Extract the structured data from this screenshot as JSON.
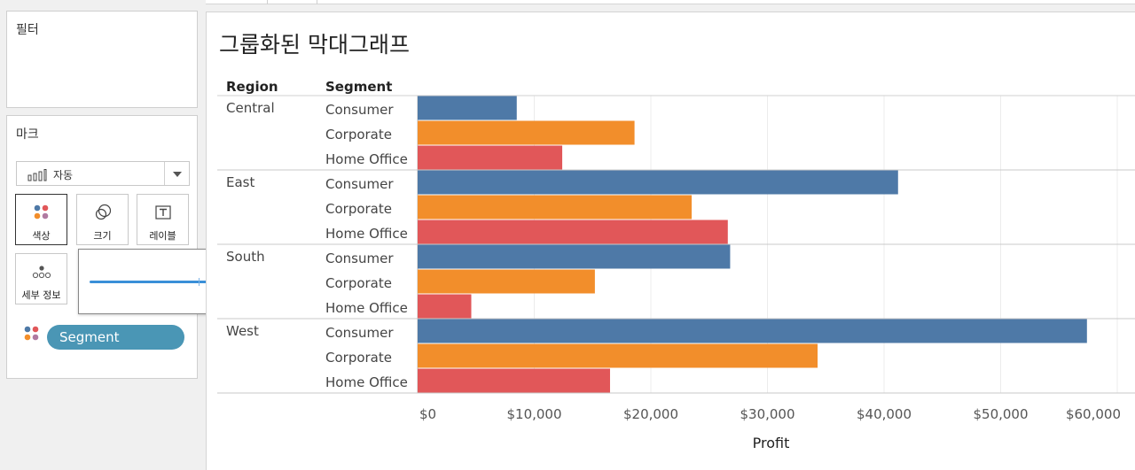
{
  "panels": {
    "filters_title": "필터",
    "marks_title": "마크",
    "mark_type": "자동",
    "buttons": [
      {
        "label": "색상",
        "icon": "color-icon",
        "active": true
      },
      {
        "label": "크기",
        "icon": "size-icon",
        "active": false
      },
      {
        "label": "레이블",
        "icon": "label-icon",
        "active": false
      },
      {
        "label": "세부 정보",
        "icon": "detail-icon",
        "active": false
      }
    ],
    "color_pill": "Segment",
    "size_slider_value": 1.0
  },
  "sheet": {
    "title": "그룹화된 막대그래프"
  },
  "colors": {
    "Consumer": "#4e79a7",
    "Corporate": "#f28e2b",
    "Home Office": "#e15759",
    "pill": "#4a96b5"
  },
  "chart_data": {
    "type": "bar",
    "orientation": "horizontal",
    "title": "그룹화된 막대그래프",
    "row_headers": [
      "Region",
      "Segment"
    ],
    "groups": [
      "Central",
      "East",
      "South",
      "West"
    ],
    "categories": [
      "Consumer",
      "Corporate",
      "Home Office"
    ],
    "series": [
      {
        "name": "Central",
        "values": [
          8500,
          18600,
          12400
        ]
      },
      {
        "name": "East",
        "values": [
          41200,
          23500,
          26600
        ]
      },
      {
        "name": "South",
        "values": [
          26800,
          15200,
          4600
        ]
      },
      {
        "name": "West",
        "values": [
          57400,
          34300,
          16500
        ]
      }
    ],
    "xlabel": "Profit",
    "xlim": [
      0,
      60000
    ],
    "ticks": [
      0,
      10000,
      20000,
      30000,
      40000,
      50000,
      60000
    ],
    "tick_labels": [
      "$0",
      "$10,000",
      "$20,000",
      "$30,000",
      "$40,000",
      "$50,000",
      "$60,000"
    ],
    "grid": true
  }
}
